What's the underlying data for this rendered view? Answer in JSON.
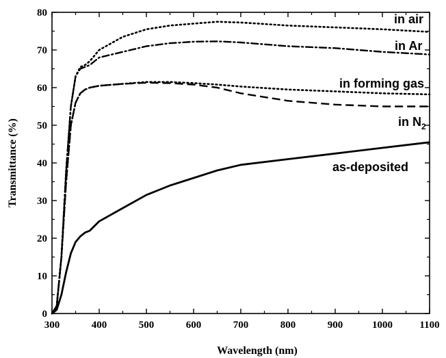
{
  "chart_data": {
    "type": "line",
    "title": "",
    "xlabel": "Wavelength (nm)",
    "ylabel": "Transmittance (%)",
    "xlim": [
      300,
      1100
    ],
    "ylim": [
      0,
      80
    ],
    "x_ticks": [
      "300",
      "400",
      "500",
      "600",
      "700",
      "800",
      "900",
      "1000",
      "1100"
    ],
    "y_ticks": [
      "0",
      "10",
      "20",
      "30",
      "40",
      "50",
      "60",
      "70",
      "80"
    ],
    "grid": false,
    "legend": "none (curves labeled directly)",
    "series": [
      {
        "name": "in air",
        "line_style": "dotted",
        "x": [
          300,
          310,
          320,
          330,
          340,
          350,
          360,
          370,
          380,
          400,
          450,
          500,
          550,
          600,
          650,
          700,
          800,
          900,
          1000,
          1100
        ],
        "values": [
          0,
          2,
          15,
          38,
          55,
          63,
          65.5,
          66,
          67,
          70,
          73.5,
          75.5,
          76.5,
          77,
          77.5,
          77.3,
          76.5,
          76,
          75.5,
          74.8
        ]
      },
      {
        "name": "in Ar",
        "line_style": "dash-dot",
        "x": [
          300,
          310,
          320,
          330,
          340,
          350,
          360,
          370,
          380,
          400,
          450,
          500,
          550,
          600,
          650,
          700,
          800,
          900,
          1000,
          1100
        ],
        "values": [
          0,
          2,
          15,
          38,
          55,
          63,
          65,
          65.5,
          66,
          68,
          69.5,
          71,
          71.8,
          72.2,
          72.3,
          72,
          71,
          70.5,
          69.5,
          68.8
        ]
      },
      {
        "name": "in forming gas",
        "line_style": "dotted",
        "x": [
          300,
          310,
          320,
          330,
          340,
          350,
          360,
          370,
          380,
          400,
          450,
          500,
          550,
          600,
          650,
          700,
          800,
          900,
          1000,
          1100
        ],
        "values": [
          0,
          2,
          15,
          35,
          50,
          56,
          58.5,
          59.5,
          60,
          60.5,
          61,
          61.5,
          61.5,
          61.2,
          60.8,
          60.3,
          59.5,
          59,
          58.5,
          58.2
        ]
      },
      {
        "name": "in N2",
        "line_style": "dashed",
        "x": [
          300,
          310,
          320,
          330,
          340,
          350,
          360,
          370,
          380,
          400,
          450,
          500,
          550,
          600,
          650,
          700,
          800,
          900,
          1000,
          1100
        ],
        "values": [
          0,
          2,
          15,
          35,
          50,
          56,
          58.5,
          59.5,
          60,
          60.5,
          61,
          61.3,
          61.2,
          60.8,
          60,
          58.5,
          56.5,
          55.5,
          55,
          55
        ]
      },
      {
        "name": "as-deposited",
        "line_style": "solid",
        "x": [
          300,
          310,
          320,
          330,
          340,
          350,
          360,
          370,
          380,
          400,
          450,
          500,
          550,
          600,
          650,
          700,
          800,
          900,
          1000,
          1100
        ],
        "values": [
          0,
          1,
          5,
          11,
          16,
          19,
          20.5,
          21.5,
          22,
          24.5,
          28,
          31.5,
          34,
          36,
          38,
          39.5,
          41,
          42.5,
          44,
          45.5
        ]
      }
    ],
    "labels": {
      "in_air": "in air",
      "in_ar": "in Ar",
      "in_forming_gas": "in forming gas",
      "in_n2_main": "in N",
      "in_n2_sub": "2",
      "as_deposited": "as-deposited"
    }
  }
}
